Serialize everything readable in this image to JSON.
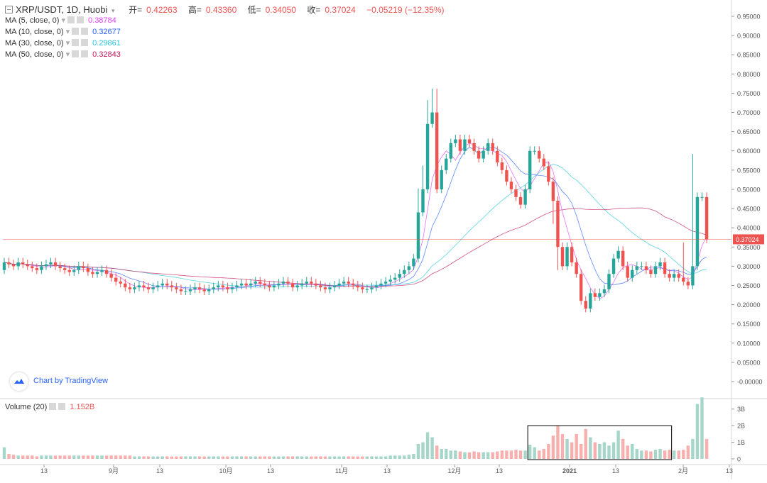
{
  "header": {
    "symbol": "XRP/USDT, 1D, Huobi",
    "open_label": "开=",
    "open": "0.42263",
    "high_label": "高=",
    "high": "0.43360",
    "low_label": "低=",
    "low": "0.34050",
    "close_label": "收=",
    "close": "0.37024",
    "change": "−0.05219 (−12.35%)"
  },
  "ma": [
    {
      "label": "MA (5, close, 0)",
      "value": "0.38784",
      "color": "#e040fb"
    },
    {
      "label": "MA (10, close, 0)",
      "value": "0.32677",
      "color": "#2962ff"
    },
    {
      "label": "MA (30, close, 0)",
      "value": "0.29861",
      "color": "#26c6da"
    },
    {
      "label": "MA (50, close, 0)",
      "value": "0.32843",
      "color": "#c2185b"
    }
  ],
  "volume_legend": {
    "label": "Volume (20)",
    "value": "1.152B"
  },
  "watermark": "Chart by TradingView",
  "last_price_label": "0.37024",
  "colors": {
    "up": "#26a69a",
    "down": "#ef5350",
    "up_vol": "#a5d6c9",
    "down_vol": "#f7b0ae"
  },
  "chart_data": {
    "type": "candlestick",
    "price_axis": {
      "min": -0.05,
      "max": 0.95,
      "ticks": [
        "0.95000",
        "0.90000",
        "0.85000",
        "0.80000",
        "0.75000",
        "0.70000",
        "0.65000",
        "0.60000",
        "0.55000",
        "0.50000",
        "0.45000",
        "0.40000",
        "0.35000",
        "0.30000",
        "0.25000",
        "0.20000",
        "0.15000",
        "0.10000",
        "0.05000",
        "-0.00000"
      ]
    },
    "volume_axis": {
      "ticks": [
        "3B",
        "2B",
        "1B",
        "0"
      ],
      "max": 3.5
    },
    "x_labels": [
      "13",
      "9月",
      "13",
      "10月",
      "13",
      "11月",
      "13",
      "12月",
      "13",
      "2021",
      "13",
      "2月",
      "13"
    ],
    "closes": [
      0.31,
      0.305,
      0.3,
      0.31,
      0.305,
      0.3,
      0.295,
      0.29,
      0.3,
      0.305,
      0.31,
      0.3,
      0.295,
      0.29,
      0.285,
      0.29,
      0.3,
      0.295,
      0.285,
      0.28,
      0.285,
      0.29,
      0.28,
      0.27,
      0.26,
      0.255,
      0.245,
      0.24,
      0.245,
      0.25,
      0.245,
      0.24,
      0.245,
      0.25,
      0.255,
      0.25,
      0.245,
      0.24,
      0.235,
      0.235,
      0.24,
      0.245,
      0.24,
      0.235,
      0.24,
      0.245,
      0.25,
      0.245,
      0.24,
      0.245,
      0.25,
      0.255,
      0.25,
      0.255,
      0.26,
      0.255,
      0.25,
      0.245,
      0.25,
      0.255,
      0.26,
      0.255,
      0.245,
      0.25,
      0.255,
      0.26,
      0.255,
      0.25,
      0.245,
      0.24,
      0.245,
      0.25,
      0.255,
      0.26,
      0.255,
      0.25,
      0.245,
      0.24,
      0.24,
      0.245,
      0.25,
      0.255,
      0.26,
      0.265,
      0.27,
      0.28,
      0.29,
      0.3,
      0.32,
      0.44,
      0.5,
      0.67,
      0.7,
      0.5,
      0.55,
      0.58,
      0.62,
      0.63,
      0.6,
      0.63,
      0.62,
      0.6,
      0.58,
      0.6,
      0.62,
      0.6,
      0.57,
      0.55,
      0.52,
      0.5,
      0.48,
      0.46,
      0.5,
      0.6,
      0.6,
      0.58,
      0.56,
      0.52,
      0.47,
      0.35,
      0.3,
      0.35,
      0.31,
      0.28,
      0.21,
      0.19,
      0.23,
      0.22,
      0.23,
      0.24,
      0.28,
      0.32,
      0.34,
      0.3,
      0.27,
      0.29,
      0.3,
      0.3,
      0.29,
      0.28,
      0.3,
      0.31,
      0.28,
      0.27,
      0.28,
      0.27,
      0.26,
      0.25,
      0.3,
      0.48,
      0.48,
      0.37
    ],
    "volumes": [
      0.7,
      0.3,
      0.25,
      0.2,
      0.2,
      0.2,
      0.2,
      0.15,
      0.2,
      0.2,
      0.2,
      0.2,
      0.2,
      0.2,
      0.2,
      0.2,
      0.2,
      0.2,
      0.2,
      0.2,
      0.2,
      0.2,
      0.2,
      0.2,
      0.2,
      0.2,
      0.2,
      0.2,
      0.15,
      0.15,
      0.15,
      0.15,
      0.15,
      0.15,
      0.15,
      0.15,
      0.15,
      0.15,
      0.15,
      0.15,
      0.15,
      0.15,
      0.15,
      0.15,
      0.15,
      0.15,
      0.15,
      0.15,
      0.15,
      0.15,
      0.15,
      0.15,
      0.15,
      0.15,
      0.15,
      0.15,
      0.15,
      0.15,
      0.15,
      0.15,
      0.15,
      0.15,
      0.15,
      0.15,
      0.15,
      0.15,
      0.15,
      0.15,
      0.15,
      0.15,
      0.15,
      0.15,
      0.15,
      0.15,
      0.15,
      0.15,
      0.15,
      0.15,
      0.15,
      0.15,
      0.15,
      0.15,
      0.15,
      0.2,
      0.2,
      0.2,
      0.2,
      0.25,
      0.3,
      0.9,
      1.0,
      1.6,
      1.3,
      0.8,
      0.6,
      0.6,
      0.5,
      0.5,
      0.45,
      0.4,
      0.4,
      0.45,
      0.4,
      0.4,
      0.4,
      0.4,
      0.45,
      0.5,
      0.5,
      0.5,
      0.55,
      0.5,
      0.5,
      0.85,
      0.7,
      0.5,
      0.6,
      0.9,
      1.4,
      2.0,
      1.5,
      1.2,
      1.0,
      1.5,
      0.9,
      1.8,
      1.3,
      1.0,
      0.9,
      1.0,
      0.8,
      1.0,
      1.7,
      1.2,
      0.8,
      0.9,
      0.6,
      0.5,
      0.5,
      0.45,
      0.55,
      0.6,
      0.5,
      0.55,
      0.5,
      0.5,
      0.55,
      0.8,
      1.2,
      3.3,
      3.7,
      1.2
    ],
    "annotation_box": {
      "from_index": 113,
      "to_index": 143,
      "top_value": 2.0
    }
  }
}
